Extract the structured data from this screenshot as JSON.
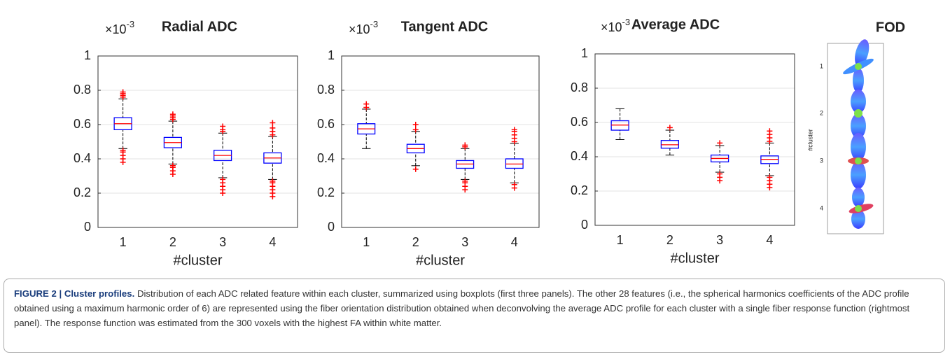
{
  "chart_data": [
    {
      "type": "box",
      "title": "Radial ADC",
      "y_multiplier": "×10",
      "y_exponent": "-3",
      "xlabel": "#cluster",
      "categories": [
        "1",
        "2",
        "3",
        "4"
      ],
      "ylim": [
        0,
        1
      ],
      "yticks": [
        0,
        0.2,
        0.4,
        0.6,
        0.8,
        1
      ],
      "grid": true,
      "box_color": "#0000ff",
      "median_color": "#ff0000",
      "flier_color": "#ff0000",
      "boxes": [
        {
          "whislo": 0.46,
          "q1": 0.57,
          "med": 0.605,
          "q3": 0.64,
          "whishi": 0.75,
          "fliers": [
            0.38,
            0.4,
            0.42,
            0.44,
            0.45,
            0.76,
            0.77,
            0.78,
            0.79
          ]
        },
        {
          "whislo": 0.37,
          "q1": 0.465,
          "med": 0.495,
          "q3": 0.525,
          "whishi": 0.62,
          "fliers": [
            0.31,
            0.33,
            0.35,
            0.36,
            0.63,
            0.64,
            0.65,
            0.66
          ]
        },
        {
          "whislo": 0.29,
          "q1": 0.39,
          "med": 0.42,
          "q3": 0.45,
          "whishi": 0.55,
          "fliers": [
            0.2,
            0.22,
            0.24,
            0.26,
            0.28,
            0.56,
            0.57,
            0.59
          ]
        },
        {
          "whislo": 0.28,
          "q1": 0.375,
          "med": 0.405,
          "q3": 0.435,
          "whishi": 0.53,
          "fliers": [
            0.18,
            0.2,
            0.22,
            0.24,
            0.26,
            0.27,
            0.54,
            0.56,
            0.58,
            0.61
          ]
        }
      ]
    },
    {
      "type": "box",
      "title": "Tangent ADC",
      "y_multiplier": "×10",
      "y_exponent": "-3",
      "xlabel": "#cluster",
      "categories": [
        "1",
        "2",
        "3",
        "4"
      ],
      "ylim": [
        0,
        1
      ],
      "yticks": [
        0,
        0.2,
        0.4,
        0.6,
        0.8,
        1
      ],
      "grid": true,
      "box_color": "#0000ff",
      "median_color": "#ff0000",
      "flier_color": "#ff0000",
      "boxes": [
        {
          "whislo": 0.46,
          "q1": 0.545,
          "med": 0.575,
          "q3": 0.605,
          "whishi": 0.69,
          "fliers": [
            0.7,
            0.72
          ]
        },
        {
          "whislo": 0.36,
          "q1": 0.435,
          "med": 0.46,
          "q3": 0.485,
          "whishi": 0.56,
          "fliers": [
            0.34,
            0.57,
            0.6
          ]
        },
        {
          "whislo": 0.28,
          "q1": 0.345,
          "med": 0.37,
          "q3": 0.39,
          "whishi": 0.46,
          "fliers": [
            0.22,
            0.24,
            0.26,
            0.27,
            0.47,
            0.48
          ]
        },
        {
          "whislo": 0.26,
          "q1": 0.345,
          "med": 0.37,
          "q3": 0.4,
          "whishi": 0.49,
          "fliers": [
            0.23,
            0.25,
            0.5,
            0.52,
            0.54,
            0.56,
            0.57
          ]
        }
      ]
    },
    {
      "type": "box",
      "title": "Average ADC",
      "y_multiplier": "×10",
      "y_exponent": "-3",
      "xlabel": "#cluster",
      "categories": [
        "1",
        "2",
        "3",
        "4"
      ],
      "ylim": [
        0,
        1
      ],
      "yticks": [
        0,
        0.2,
        0.4,
        0.6,
        0.8,
        1
      ],
      "grid": true,
      "box_color": "#0000ff",
      "median_color": "#ff0000",
      "flier_color": "#ff0000",
      "boxes": [
        {
          "whislo": 0.5,
          "q1": 0.555,
          "med": 0.585,
          "q3": 0.61,
          "whishi": 0.68,
          "fliers": []
        },
        {
          "whislo": 0.41,
          "q1": 0.45,
          "med": 0.47,
          "q3": 0.495,
          "whishi": 0.555,
          "fliers": [
            0.57
          ]
        },
        {
          "whislo": 0.31,
          "q1": 0.37,
          "med": 0.39,
          "q3": 0.41,
          "whishi": 0.465,
          "fliers": [
            0.26,
            0.28,
            0.3,
            0.48
          ]
        },
        {
          "whislo": 0.29,
          "q1": 0.36,
          "med": 0.385,
          "q3": 0.405,
          "whishi": 0.48,
          "fliers": [
            0.22,
            0.24,
            0.26,
            0.28,
            0.49,
            0.51,
            0.53,
            0.55
          ]
        }
      ]
    }
  ],
  "fod": {
    "title": "FOD",
    "ylabel": "#cluster",
    "ticks": [
      "1",
      "2",
      "3",
      "4"
    ]
  },
  "caption": {
    "label": "FIGURE 2 |",
    "title": "Cluster profiles.",
    "text": "Distribution of each ADC related feature within each cluster, summarized using boxplots (first three panels). The other 28 features (i.e., the spherical harmonics coefficients of the ADC profile obtained using a maximum harmonic order of 6) are represented using the fiber orientation distribution obtained when deconvolving the average ADC profile for each cluster with a single fiber response function (rightmost panel). The response function was estimated from the 300 voxels with the highest FA within white matter."
  }
}
